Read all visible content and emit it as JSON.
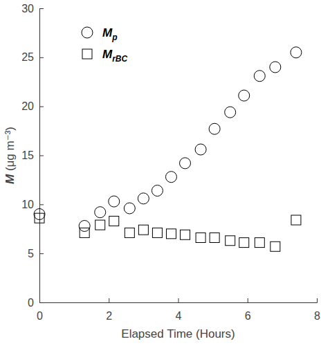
{
  "chart_data": {
    "type": "scatter",
    "x_label": "Elapsed Time  (Hours)",
    "y_label": "M  (μg m⁻³)",
    "x": [
      0,
      1.3,
      1.75,
      2.15,
      2.6,
      3.0,
      3.4,
      3.8,
      4.2,
      4.65,
      5.05,
      5.5,
      5.9,
      6.35,
      6.8,
      7.4
    ],
    "series": [
      {
        "name": "Mp",
        "color": "#000000",
        "marker": "circle",
        "values": [
          9.0,
          7.8,
          9.2,
          10.3,
          9.6,
          10.6,
          11.4,
          12.8,
          14.2,
          15.6,
          17.7,
          19.4,
          21.1,
          23.1,
          24.0,
          25.5
        ]
      },
      {
        "name": "MrBC",
        "color": "#000000",
        "marker": "square",
        "values": [
          8.6,
          7.1,
          7.9,
          8.3,
          7.1,
          7.4,
          7.1,
          7.0,
          6.9,
          6.6,
          6.6,
          6.3,
          6.1,
          6.1,
          5.7,
          8.4
        ]
      }
    ],
    "xlim": [
      0,
      8
    ],
    "xticks": [
      0,
      2,
      4,
      6,
      8
    ],
    "ylim": [
      0,
      30
    ],
    "yticks": [
      0,
      5,
      10,
      15,
      20,
      25,
      30
    ],
    "legend": "upper left",
    "grid": false
  }
}
